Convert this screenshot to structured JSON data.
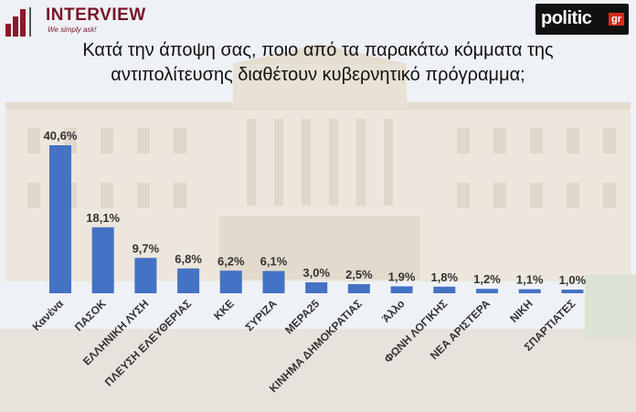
{
  "header": {
    "brand_left": "INTERVIEW",
    "brand_left_tagline": "We simply ask!",
    "brand_right": "politic",
    "brand_right_suffix": "gr"
  },
  "title_line1": "Κατά την άποψη σας, ποιο από τα παρακάτω κόμματα της",
  "title_line2": "αντιπολίτευσης διαθέτουν κυβερνητικό πρόγραμμα;",
  "colors": {
    "bar": "#4472c4",
    "brand": "#7a1528",
    "label": "#333333"
  },
  "chart_data": {
    "type": "bar",
    "title": "Κατά την άποψη σας, ποιο από τα παρακάτω κόμματα της αντιπολίτευσης διαθέτουν κυβερνητικό πρόγραμμα;",
    "categories": [
      "Κανένα",
      "ΠΑΣΟΚ",
      "ΕΛΛΗΝΙΚΗ ΛΥΣΗ",
      "ΠΛΕΥΣΗ ΕΛΕΥΘΕΡΙΑΣ",
      "ΚΚΕ",
      "ΣΥΡΙΖΑ",
      "ΜΕΡΑ25",
      "ΚΙΝΗΜΑ ΔΗΜΟΚΡΑΤΙΑΣ",
      "Άλλο",
      "ΦΩΝΗ ΛΟΓΙΚΗΣ",
      "ΝΕΑ ΑΡΙΣΤΕΡΑ",
      "ΝΙΚΗ",
      "ΣΠΑΡΤΙΑΤΕΣ"
    ],
    "values": [
      40.6,
      18.1,
      9.7,
      6.8,
      6.2,
      6.1,
      3.0,
      2.5,
      1.9,
      1.8,
      1.2,
      1.1,
      1.0
    ],
    "data_labels": [
      "40,6%",
      "18,1%",
      "9,7%",
      "6,8%",
      "6,2%",
      "6,1%",
      "3,0%",
      "2,5%",
      "1,9%",
      "1,8%",
      "1,2%",
      "1,1%",
      "1,0%"
    ],
    "xlabel": "",
    "ylabel": "",
    "ylim": [
      0,
      40.6
    ],
    "grid": false,
    "legend": "none"
  }
}
